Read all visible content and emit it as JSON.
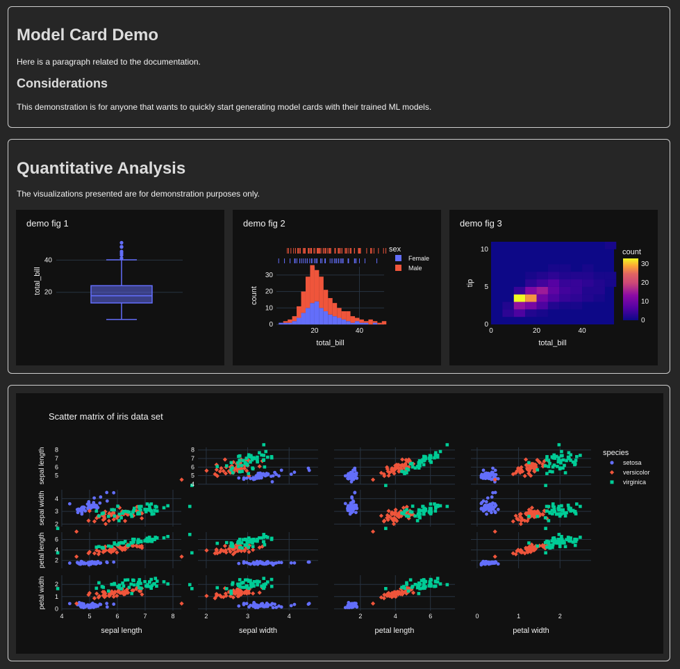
{
  "section1": {
    "title": "Model Card Demo",
    "paragraph": "Here is a paragraph related to the documentation.",
    "subtitle": "Considerations",
    "subparagraph": "This demonstration is for anyone that wants to quickly start generating model cards with their trained ML models."
  },
  "section2": {
    "title": "Quantitative Analysis",
    "paragraph": "The visualizations presented are for demonstration purposes only."
  },
  "colors": {
    "blue": "#636efa",
    "red": "#ef553b",
    "green": "#00cc96",
    "panel": "#111111",
    "grid": "#283442"
  },
  "chart_data": [
    {
      "type": "box",
      "title": "demo fig 1",
      "ylabel": "total_bill",
      "ylim": [
        0,
        54
      ],
      "yticks": [
        20,
        40
      ],
      "box": {
        "q1": 13.35,
        "median": 17.8,
        "q3": 24.1,
        "lowerfence": 3.07,
        "upperfence": 40.17
      },
      "outliers": [
        41.19,
        43.11,
        44.3,
        45.35,
        48.17,
        48.27,
        48.33,
        50.81
      ]
    },
    {
      "type": "bar",
      "title": "demo fig 2",
      "xlabel": "total_bill",
      "ylabel": "count",
      "legend_title": "sex",
      "xlim": [
        3,
        51
      ],
      "ylim": [
        0,
        35
      ],
      "xticks": [
        20,
        40
      ],
      "yticks": [
        0,
        10,
        20,
        30
      ],
      "bin_start": 4,
      "bin_width": 2,
      "series": [
        {
          "name": "Female",
          "values": [
            1,
            1,
            1,
            2,
            4,
            7,
            10,
            13,
            14,
            10,
            8,
            6,
            5,
            4,
            3,
            2,
            1,
            2,
            1,
            1,
            0,
            1,
            0,
            0
          ]
        },
        {
          "name": "Male",
          "values": [
            0,
            1,
            2,
            3,
            7,
            13,
            19,
            23,
            19,
            19,
            13,
            10,
            8,
            6,
            5,
            6,
            4,
            2,
            2,
            1,
            3,
            1,
            1,
            2
          ]
        }
      ]
    },
    {
      "type": "heatmap",
      "title": "demo fig 3",
      "xlabel": "total_bill",
      "ylabel": "tip",
      "colorbar_title": "count",
      "xlim": [
        0,
        54
      ],
      "ylim": [
        0,
        11
      ],
      "xticks": [
        0,
        20,
        40
      ],
      "yticks": [
        0,
        5,
        10
      ],
      "colorbar_ticks": [
        0,
        10,
        20,
        30
      ],
      "zmax": 33,
      "cells": [
        [
          5,
          1,
          3
        ],
        [
          10,
          1,
          6
        ],
        [
          15,
          1,
          2
        ],
        [
          20,
          1,
          1
        ],
        [
          5,
          2,
          2
        ],
        [
          10,
          2,
          14
        ],
        [
          15,
          2,
          11
        ],
        [
          20,
          2,
          6
        ],
        [
          25,
          2,
          2
        ],
        [
          30,
          2,
          1
        ],
        [
          35,
          2,
          1
        ],
        [
          10,
          3,
          33
        ],
        [
          15,
          3,
          28
        ],
        [
          20,
          3,
          10
        ],
        [
          25,
          3,
          6
        ],
        [
          30,
          3,
          4
        ],
        [
          35,
          3,
          3
        ],
        [
          40,
          3,
          2
        ],
        [
          45,
          3,
          1
        ],
        [
          10,
          4,
          4
        ],
        [
          15,
          4,
          12
        ],
        [
          20,
          4,
          15
        ],
        [
          25,
          4,
          8
        ],
        [
          30,
          4,
          5
        ],
        [
          35,
          4,
          4
        ],
        [
          40,
          4,
          2
        ],
        [
          45,
          4,
          2
        ],
        [
          15,
          5,
          3
        ],
        [
          20,
          5,
          5
        ],
        [
          25,
          5,
          7
        ],
        [
          30,
          5,
          4
        ],
        [
          35,
          5,
          4
        ],
        [
          40,
          5,
          3
        ],
        [
          45,
          5,
          2
        ],
        [
          50,
          5,
          1
        ],
        [
          15,
          6,
          1
        ],
        [
          20,
          6,
          2
        ],
        [
          25,
          6,
          3
        ],
        [
          30,
          6,
          2
        ],
        [
          35,
          6,
          2
        ],
        [
          40,
          6,
          2
        ],
        [
          45,
          6,
          1
        ],
        [
          50,
          6,
          1
        ],
        [
          25,
          7,
          1
        ],
        [
          30,
          7,
          1
        ],
        [
          40,
          7,
          1
        ],
        [
          50,
          10,
          1
        ]
      ]
    },
    {
      "type": "scatter",
      "title": "Scatter matrix of iris data set",
      "legend_title": "species",
      "dimensions": [
        "sepal length",
        "sepal width",
        "petal length",
        "petal width"
      ],
      "ranges": [
        [
          4,
          8.3
        ],
        [
          1.8,
          4.7
        ],
        [
          0.5,
          7.4
        ],
        [
          -0.15,
          2.75
        ]
      ],
      "xticks": [
        [
          4,
          5,
          6,
          7,
          8
        ],
        [
          2,
          3,
          4
        ],
        [
          2,
          4,
          6
        ],
        [
          0,
          1,
          2
        ]
      ],
      "yticks": [
        [
          4,
          5,
          6,
          7,
          8
        ],
        [
          2,
          3,
          4
        ],
        [
          2,
          4,
          6
        ],
        [
          0,
          1,
          2
        ]
      ],
      "series": [
        {
          "name": "setosa",
          "mean": [
            5.006,
            3.428,
            1.462,
            0.246
          ],
          "sd": [
            0.35,
            0.38,
            0.17,
            0.1
          ]
        },
        {
          "name": "versicolor",
          "mean": [
            5.936,
            2.77,
            4.26,
            1.326
          ],
          "sd": [
            0.52,
            0.31,
            0.47,
            0.2
          ]
        },
        {
          "name": "virginica",
          "mean": [
            6.588,
            2.974,
            5.552,
            2.026
          ],
          "sd": [
            0.64,
            0.32,
            0.55,
            0.27
          ]
        }
      ]
    }
  ]
}
